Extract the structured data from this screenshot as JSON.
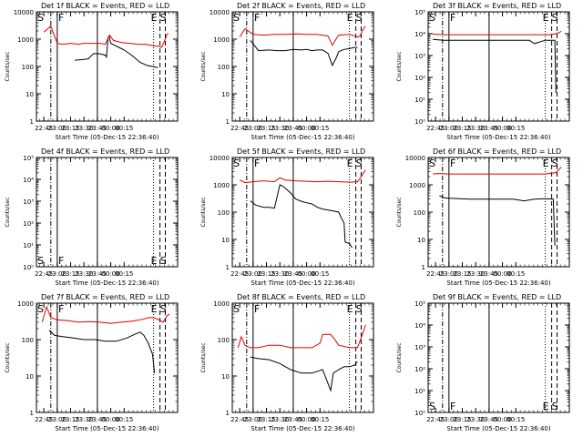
{
  "colors": {
    "events": "#000000",
    "lld": "#e00000",
    "background": "#ffffff",
    "axes": "#000000"
  },
  "common": {
    "x_tick_labels": [
      "22:45",
      "23:00",
      "23:15",
      "23:30",
      "23:45",
      "00:00",
      "00:15"
    ],
    "x_label": "Start Time (05-Dec-15 22:36:40)",
    "y_label": "Counts/sec",
    "y_scale": "log",
    "y_tick_labels": [
      "1",
      "10",
      "100",
      "1000",
      "10000"
    ]
  },
  "chart_data": [
    {
      "type": "line",
      "title": "Det 1f BLACK = Events, RED = LLD",
      "ylim": [
        1,
        10000
      ],
      "y_tick_labels": [
        "1",
        "10",
        "100",
        "1000",
        "10000"
      ],
      "markers": [
        "S",
        "F",
        "E",
        "S"
      ],
      "series": [
        {
          "color": "#000000",
          "x": [
            22.88,
            23.0,
            23.15,
            23.25,
            23.33,
            23.5,
            23.58,
            23.68,
            23.8,
            23.9,
            23.92,
            23.95,
            23.97,
            24.0,
            24.15,
            24.25,
            24.4,
            24.55,
            24.63,
            24.67,
            24.78,
            24.88,
            24.92
          ],
          "y": [
            null,
            null,
            null,
            null,
            170,
            180,
            190,
            300,
            290,
            260,
            220,
            1100,
            1300,
            700,
            500,
            400,
            250,
            140,
            120,
            110,
            100,
            90,
            null
          ]
        },
        {
          "color": "#e00000",
          "x": [
            22.75,
            22.88,
            23.0,
            23.1,
            23.25,
            23.4,
            23.5,
            23.65,
            23.8,
            23.9,
            23.95,
            23.98,
            24.05,
            24.2,
            24.35,
            24.5,
            24.65,
            24.75,
            24.85,
            24.9,
            24.95,
            25.0,
            25.05,
            25.08
          ],
          "y": [
            1800,
            3000,
            700,
            650,
            700,
            650,
            700,
            700,
            700,
            650,
            1100,
            1400,
            900,
            750,
            700,
            650,
            650,
            600,
            550,
            550,
            500,
            800,
            1500,
            1600
          ]
        }
      ]
    },
    {
      "type": "line",
      "title": "Det 2f BLACK = Events, RED = LLD",
      "ylim": [
        1,
        10000
      ],
      "y_tick_labels": [
        "1",
        "10",
        "100",
        "1000",
        "10000"
      ],
      "markers": [
        "S",
        "F",
        "E",
        "S"
      ],
      "series": [
        {
          "color": "#000000",
          "x": [
            22.95,
            23.1,
            23.3,
            23.45,
            23.6,
            23.75,
            23.9,
            24.0,
            24.1,
            24.2,
            24.3,
            24.4,
            24.48,
            24.55,
            24.6,
            24.7,
            24.8,
            24.9,
            24.95
          ],
          "y": [
            900,
            380,
            400,
            380,
            380,
            420,
            400,
            420,
            380,
            400,
            400,
            300,
            110,
            200,
            350,
            420,
            450,
            500,
            500
          ]
        },
        {
          "color": "#e00000",
          "x": [
            22.75,
            22.85,
            23.0,
            23.2,
            23.4,
            23.6,
            23.8,
            24.0,
            24.2,
            24.4,
            24.48,
            24.55,
            24.6,
            24.8,
            24.95,
            25.0,
            25.05,
            25.1
          ],
          "y": [
            1200,
            2400,
            1500,
            1400,
            1500,
            1500,
            1550,
            1500,
            1500,
            1300,
            600,
            1000,
            1400,
            1500,
            1200,
            1300,
            2200,
            3000
          ]
        }
      ]
    },
    {
      "type": "line",
      "title": "Det 3f BLACK = Events, RED = LLD",
      "ylim": [
        1,
        100000
      ],
      "y_tick_labels": [
        "10⁰",
        "10¹",
        "10²",
        "10³",
        "10⁴",
        "10⁵"
      ],
      "markers": [
        "S",
        "F",
        "E",
        "S"
      ],
      "series": [
        {
          "color": "#000000",
          "x": [
            22.7,
            22.9,
            23.1,
            23.3,
            23.5,
            23.7,
            23.9,
            24.1,
            24.3,
            24.5,
            24.6,
            24.8,
            24.98,
            25.0
          ],
          "y": [
            5500,
            5000,
            5000,
            5000,
            5000,
            5000,
            5000,
            5000,
            5000,
            5000,
            3500,
            5000,
            5000,
            20
          ]
        },
        {
          "color": "#e00000",
          "x": [
            22.7,
            22.9,
            23.1,
            23.3,
            23.5,
            23.7,
            23.9,
            24.1,
            24.3,
            24.5,
            24.7,
            24.9,
            25.0,
            25.05,
            25.1
          ],
          "y": [
            9500,
            9000,
            9000,
            9000,
            9000,
            9000,
            9000,
            9000,
            9000,
            9000,
            9000,
            9000,
            10000,
            11000,
            13000
          ]
        }
      ]
    },
    {
      "type": "line",
      "title": "Det 4f BLACK = Events, RED = LLD",
      "ylim": [
        1,
        100000
      ],
      "y_tick_labels": [
        "10⁰",
        "10¹",
        "10²",
        "10³",
        "10⁴",
        "10⁵"
      ],
      "markers": [
        "S",
        "F",
        "E",
        "S"
      ],
      "series": []
    },
    {
      "type": "line",
      "title": "Det 5f BLACK = Events, RED = LLD",
      "ylim": [
        1,
        10000
      ],
      "y_tick_labels": [
        "1",
        "10",
        "100",
        "1000",
        "10000"
      ],
      "markers": [
        "S",
        "F",
        "E",
        "S"
      ],
      "series": [
        {
          "color": "#000000",
          "x": [
            22.95,
            23.05,
            23.2,
            23.3,
            23.4,
            23.5,
            23.55,
            23.62,
            23.7,
            23.8,
            23.9,
            24.0,
            24.1,
            24.2,
            24.3,
            24.4,
            24.5,
            24.6,
            24.65,
            24.7,
            24.72,
            24.8,
            24.85
          ],
          "y": [
            260,
            180,
            150,
            150,
            140,
            1000,
            900,
            700,
            500,
            300,
            250,
            220,
            200,
            150,
            130,
            120,
            110,
            100,
            60,
            40,
            8,
            7,
            5
          ]
        },
        {
          "color": "#e00000",
          "x": [
            22.75,
            22.85,
            23.0,
            23.2,
            23.4,
            23.5,
            23.6,
            23.8,
            24.0,
            24.2,
            24.4,
            24.6,
            24.8,
            24.95,
            25.0,
            25.05,
            25.1
          ],
          "y": [
            1500,
            1200,
            1300,
            1400,
            1300,
            1800,
            1500,
            1400,
            1350,
            1300,
            1350,
            1300,
            1250,
            1300,
            1700,
            2500,
            3500
          ]
        }
      ]
    },
    {
      "type": "line",
      "title": "Det 6f BLACK = Events, RED = LLD",
      "ylim": [
        1,
        10000
      ],
      "y_tick_labels": [
        "1",
        "10",
        "100",
        "1000",
        "10000"
      ],
      "markers": [
        "S",
        "F",
        "E",
        "S"
      ],
      "series": [
        {
          "color": "#000000",
          "x": [
            22.82,
            22.9,
            23.0,
            23.2,
            23.4,
            23.6,
            23.8,
            24.0,
            24.2,
            24.4,
            24.6,
            24.8,
            24.95,
            24.98
          ],
          "y": [
            400,
            340,
            320,
            310,
            300,
            300,
            300,
            300,
            300,
            260,
            300,
            310,
            300,
            6
          ]
        },
        {
          "color": "#e00000",
          "x": [
            22.7,
            22.8,
            23.0,
            23.2,
            23.4,
            23.6,
            23.8,
            24.0,
            24.2,
            24.4,
            24.6,
            24.8,
            25.0,
            25.05,
            25.1
          ],
          "y": [
            2500,
            2600,
            2500,
            2500,
            2500,
            2500,
            2500,
            2500,
            2500,
            2500,
            2500,
            2500,
            2800,
            3500,
            4500
          ]
        }
      ]
    },
    {
      "type": "line",
      "title": "Det 7f BLACK = Events, RED = LLD",
      "ylim": [
        1,
        1000
      ],
      "y_tick_labels": [
        "1",
        "10",
        "100",
        "1000"
      ],
      "markers": [
        "S",
        "F",
        "E",
        "S"
      ],
      "series": [
        {
          "color": "#000000",
          "x": [
            22.85,
            22.95,
            23.1,
            23.3,
            23.5,
            23.7,
            23.9,
            24.1,
            24.3,
            24.45,
            24.55,
            24.62,
            24.7,
            24.78,
            24.82
          ],
          "y": [
            180,
            130,
            120,
            110,
            100,
            100,
            90,
            90,
            110,
            140,
            160,
            130,
            80,
            40,
            12
          ]
        },
        {
          "color": "#e00000",
          "x": [
            22.72,
            22.8,
            22.88,
            23.0,
            23.2,
            23.4,
            23.6,
            23.8,
            24.0,
            24.2,
            24.4,
            24.6,
            24.7,
            24.8,
            24.9,
            24.98,
            25.05,
            25.1
          ],
          "y": [
            300,
            800,
            400,
            350,
            330,
            300,
            310,
            300,
            280,
            300,
            320,
            360,
            400,
            400,
            350,
            300,
            450,
            500
          ]
        }
      ]
    },
    {
      "type": "line",
      "title": "Det 8f BLACK = Events, RED = LLD",
      "ylim": [
        1,
        1000
      ],
      "y_tick_labels": [
        "1",
        "10",
        "100",
        "1000"
      ],
      "markers": [
        "S",
        "F",
        "E",
        "S"
      ],
      "series": [
        {
          "color": "#000000",
          "x": [
            22.95,
            23.1,
            23.3,
            23.5,
            23.7,
            23.9,
            24.1,
            24.3,
            24.45,
            24.5,
            24.6,
            24.7,
            24.8,
            24.9,
            24.95
          ],
          "y": [
            33,
            30,
            28,
            22,
            15,
            12,
            12,
            15,
            4,
            12,
            15,
            18,
            18,
            20,
            25
          ]
        },
        {
          "color": "#e00000",
          "x": [
            22.72,
            22.78,
            22.85,
            22.95,
            23.1,
            23.3,
            23.5,
            23.7,
            23.9,
            24.1,
            24.25,
            24.3,
            24.45,
            24.55,
            24.6,
            24.8,
            24.95,
            25.05,
            25.1
          ],
          "y": [
            60,
            120,
            70,
            60,
            60,
            70,
            70,
            60,
            60,
            60,
            80,
            140,
            140,
            90,
            70,
            60,
            60,
            150,
            250
          ]
        }
      ]
    },
    {
      "type": "line",
      "title": "Det 9f BLACK = Events, RED = LLD",
      "ylim": [
        1,
        100000
      ],
      "y_tick_labels": [
        "10⁰",
        "10¹",
        "10²",
        "10³",
        "10⁴",
        "10⁵"
      ],
      "markers": [
        "S",
        "F",
        "E",
        "S"
      ],
      "series": []
    }
  ]
}
